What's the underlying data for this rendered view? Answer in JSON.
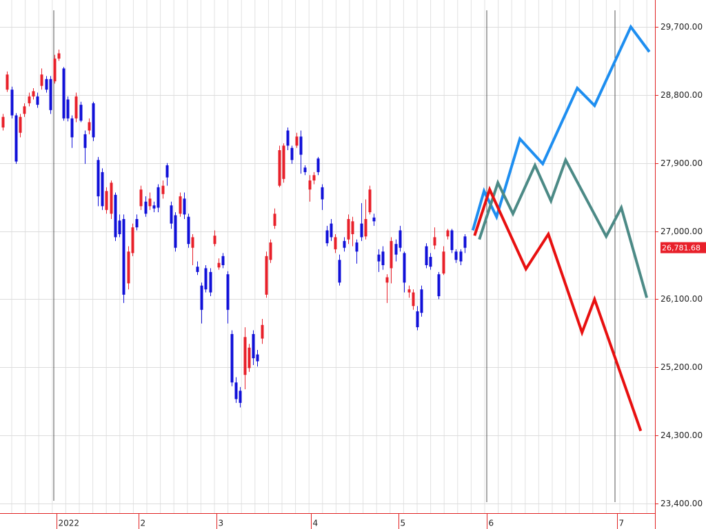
{
  "chart_data": {
    "type": "candlestick",
    "up_color": "#e8202a",
    "down_color": "#1010d8",
    "xlim": [
      -0.64,
      151.1
    ],
    "xticks": [
      {
        "value": 12.5,
        "label": "2022"
      },
      {
        "value": 31.5,
        "label": "2"
      },
      {
        "value": 49.5,
        "label": "3"
      },
      {
        "value": 71.4,
        "label": "4"
      },
      {
        "value": 91.7,
        "label": "5"
      },
      {
        "value": 112.1,
        "label": "6"
      },
      {
        "value": 142.3,
        "label": "7"
      }
    ],
    "ylim": [
      23400,
      29700
    ],
    "yticks": [
      {
        "value": 23400,
        "label": "23,400.00"
      },
      {
        "value": 24300,
        "label": "24,300.00"
      },
      {
        "value": 25200,
        "label": "25,200.00"
      },
      {
        "value": 26100,
        "label": "26,100.00"
      },
      {
        "value": 27000,
        "label": "27,000.00"
      },
      {
        "value": 27900,
        "label": "27,900.00"
      },
      {
        "value": 28800,
        "label": "28,800.00"
      },
      {
        "value": 29700,
        "label": "29,700.00"
      }
    ],
    "grid": true,
    "last_price": {
      "value": 26781.68,
      "label": "26,781.68"
    },
    "x": [
      0,
      1,
      2,
      3,
      4,
      5,
      6,
      7,
      8,
      9,
      10,
      11,
      12,
      13,
      14,
      15,
      16,
      17,
      18,
      19,
      20,
      21,
      22,
      23,
      24,
      25,
      26,
      27,
      28,
      29,
      30,
      31,
      32,
      33,
      34,
      35,
      36,
      37,
      38,
      39,
      40,
      41,
      42,
      43,
      44,
      45,
      46,
      47,
      48,
      49,
      50,
      51,
      52,
      53,
      54,
      55,
      56,
      57,
      58,
      59,
      60,
      61,
      62,
      63,
      64,
      65,
      66,
      67,
      68,
      69,
      70,
      71,
      72,
      73,
      74,
      75,
      76,
      77,
      78,
      79,
      80,
      81,
      82,
      83,
      84,
      85,
      86,
      87,
      88,
      89,
      90,
      91,
      92,
      93,
      94,
      95,
      96,
      97,
      98,
      99,
      100,
      101,
      102,
      103,
      104,
      105,
      106,
      107
    ],
    "candles": [
      [
        28370,
        28550,
        28330,
        28510
      ],
      [
        28870,
        29110,
        28840,
        29070
      ],
      [
        28870,
        28910,
        28490,
        28530
      ],
      [
        28530,
        28560,
        27890,
        27920
      ],
      [
        28300,
        28550,
        28240,
        28510
      ],
      [
        28550,
        28690,
        28510,
        28650
      ],
      [
        28690,
        28830,
        28650,
        28780
      ],
      [
        28780,
        28890,
        28740,
        28850
      ],
      [
        28780,
        28830,
        28630,
        28670
      ],
      [
        28920,
        29150,
        28870,
        29070
      ],
      [
        29010,
        29050,
        28830,
        28870
      ],
      [
        29010,
        29050,
        28550,
        28600
      ],
      [
        28980,
        29330,
        28950,
        29280
      ],
      [
        29280,
        29400,
        29250,
        29350
      ],
      [
        29150,
        29170,
        28460,
        28490
      ],
      [
        28740,
        28780,
        28450,
        28490
      ],
      [
        28490,
        28530,
        28100,
        28240
      ],
      [
        28490,
        28830,
        28440,
        28780
      ],
      [
        28670,
        28710,
        28440,
        28460
      ],
      [
        28280,
        28330,
        27890,
        28100
      ],
      [
        28330,
        28490,
        28280,
        28440
      ],
      [
        28690,
        28710,
        28190,
        28240
      ],
      [
        27940,
        27980,
        27330,
        27460
      ],
      [
        27780,
        27830,
        27280,
        27330
      ],
      [
        27280,
        27580,
        27230,
        27530
      ],
      [
        27230,
        27670,
        27160,
        27640
      ],
      [
        27480,
        27510,
        26870,
        26920
      ],
      [
        27140,
        27220,
        26920,
        26960
      ],
      [
        27160,
        27220,
        26050,
        26160
      ],
      [
        26310,
        26800,
        26230,
        26730
      ],
      [
        26710,
        27100,
        26670,
        27050
      ],
      [
        27160,
        27220,
        27010,
        27050
      ],
      [
        27330,
        27600,
        27280,
        27550
      ],
      [
        27390,
        27460,
        27190,
        27230
      ],
      [
        27330,
        27510,
        27280,
        27430
      ],
      [
        27340,
        27390,
        27250,
        27300
      ],
      [
        27580,
        27620,
        27250,
        27310
      ],
      [
        27490,
        27670,
        27430,
        27600
      ],
      [
        27870,
        27900,
        27600,
        27710
      ],
      [
        27340,
        27390,
        27030,
        27100
      ],
      [
        27210,
        27250,
        26730,
        26780
      ],
      [
        27230,
        27510,
        27190,
        27460
      ],
      [
        27430,
        27510,
        27160,
        27220
      ],
      [
        27190,
        27230,
        26780,
        26830
      ],
      [
        26780,
        26960,
        26550,
        26920
      ],
      [
        26530,
        26600,
        26420,
        26460
      ],
      [
        26280,
        26320,
        25780,
        25960
      ],
      [
        26510,
        26550,
        26190,
        26230
      ],
      [
        26460,
        26510,
        26140,
        26190
      ],
      [
        26830,
        27010,
        26800,
        26940
      ],
      [
        26520,
        26640,
        26490,
        26580
      ],
      [
        26670,
        26710,
        26510,
        26550
      ],
      [
        26430,
        26470,
        25780,
        25960
      ],
      [
        25640,
        25690,
        24950,
        25000
      ],
      [
        25000,
        25070,
        24730,
        24780
      ],
      [
        24890,
        24940,
        24670,
        24730
      ],
      [
        25100,
        25730,
        24910,
        25600
      ],
      [
        25190,
        25510,
        25140,
        25460
      ],
      [
        25640,
        25690,
        25230,
        25320
      ],
      [
        25370,
        25430,
        25210,
        25280
      ],
      [
        25580,
        25840,
        25510,
        25760
      ],
      [
        26160,
        26730,
        26120,
        26670
      ],
      [
        26620,
        26890,
        26580,
        26850
      ],
      [
        27070,
        27300,
        27030,
        27230
      ],
      [
        27600,
        28130,
        27580,
        28070
      ],
      [
        27690,
        28160,
        27640,
        28130
      ],
      [
        28330,
        28370,
        28070,
        28130
      ],
      [
        28100,
        28130,
        27890,
        27940
      ],
      [
        28130,
        28300,
        28100,
        28250
      ],
      [
        28250,
        28330,
        27760,
        28010
      ],
      [
        27840,
        27870,
        27740,
        27780
      ],
      [
        27550,
        27740,
        27390,
        27670
      ],
      [
        27670,
        27780,
        27620,
        27740
      ],
      [
        27960,
        27980,
        27740,
        27780
      ],
      [
        27580,
        27620,
        27280,
        27420
      ],
      [
        27010,
        27070,
        26800,
        26840
      ],
      [
        27100,
        27160,
        26870,
        26920
      ],
      [
        26760,
        26960,
        26710,
        26920
      ],
      [
        26620,
        26690,
        26280,
        26320
      ],
      [
        26870,
        26920,
        26730,
        26780
      ],
      [
        26890,
        27220,
        26830,
        27160
      ],
      [
        26960,
        27190,
        26800,
        27130
      ],
      [
        26850,
        26890,
        26570,
        26730
      ],
      [
        27100,
        27370,
        26870,
        26920
      ],
      [
        26930,
        27420,
        26890,
        27160
      ],
      [
        27250,
        27600,
        27220,
        27550
      ],
      [
        27180,
        27230,
        27070,
        27130
      ],
      [
        26690,
        26760,
        26460,
        26600
      ],
      [
        26730,
        26800,
        26490,
        26550
      ],
      [
        26320,
        26430,
        26050,
        26390
      ],
      [
        26510,
        26920,
        26310,
        26870
      ],
      [
        26830,
        26890,
        26600,
        26690
      ],
      [
        27010,
        27070,
        26730,
        26780
      ],
      [
        26710,
        26730,
        26190,
        26320
      ],
      [
        26190,
        26280,
        26120,
        26230
      ],
      [
        26010,
        26230,
        25960,
        26190
      ],
      [
        25940,
        26010,
        25690,
        25730
      ],
      [
        26230,
        26280,
        25870,
        25920
      ],
      [
        26800,
        26840,
        26510,
        26550
      ],
      [
        26660,
        26710,
        26490,
        26530
      ],
      [
        26810,
        27050,
        26760,
        26920
      ],
      [
        26430,
        26460,
        26100,
        26140
      ],
      [
        26440,
        26800,
        26420,
        26730
      ],
      [
        26930,
        27030,
        26890,
        27010
      ],
      [
        27010,
        27030,
        26710,
        26750
      ],
      [
        26730,
        26760,
        26580,
        26620
      ],
      [
        26730,
        26760,
        26550,
        26600
      ],
      [
        26930,
        26960,
        26710,
        26780
      ]
    ],
    "lines": [
      {
        "color": "#1e8ef0",
        "x": [
          108.9,
          111.5,
          114.4,
          119.8,
          125.1,
          133.1,
          137.1,
          145.5,
          149.8
        ],
        "values": [
          27010,
          27530,
          27190,
          28220,
          27890,
          28890,
          28660,
          29700,
          29370
        ]
      },
      {
        "color": "#4c8a86",
        "x": [
          110.4,
          114.7,
          118.2,
          123.3,
          127.0,
          130.4,
          139.8,
          143.3,
          149.2
        ],
        "values": [
          26890,
          27640,
          27230,
          27870,
          27400,
          27940,
          26930,
          27310,
          26120
        ]
      },
      {
        "color": "#e81010",
        "x": [
          109.3,
          112.8,
          121.2,
          126.4,
          134.2,
          137.1,
          147.8
        ],
        "values": [
          26940,
          27550,
          26500,
          26960,
          25660,
          26100,
          24360
        ]
      }
    ]
  }
}
